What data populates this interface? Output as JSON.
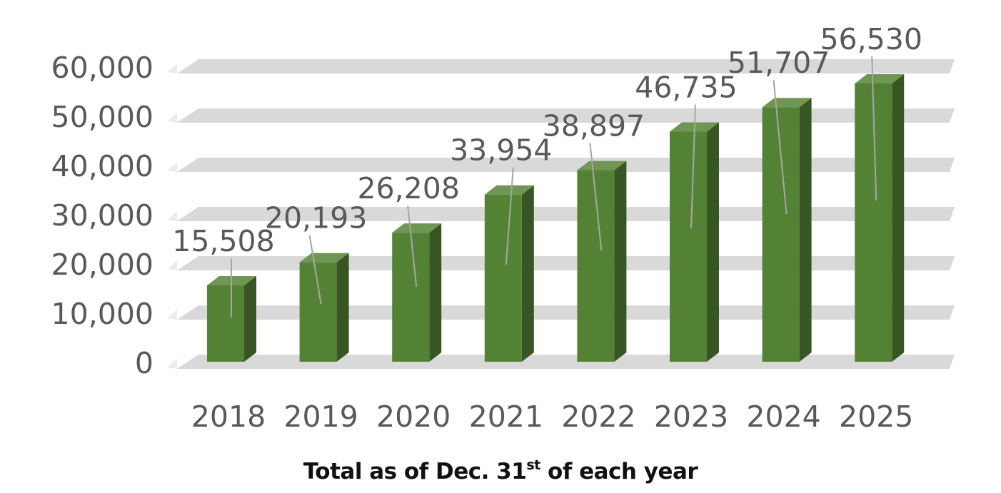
{
  "chart_data": {
    "type": "bar",
    "categories": [
      "2018",
      "2019",
      "2020",
      "2021",
      "2022",
      "2023",
      "2024",
      "2025"
    ],
    "values": [
      15508,
      20193,
      26208,
      33954,
      38897,
      46735,
      51707,
      56530
    ],
    "data_labels": [
      "15,508",
      "20,193",
      "26,208",
      "33,954",
      "38,897",
      "46,735",
      "51,707",
      "56,530"
    ],
    "y_ticks": [
      0,
      10000,
      20000,
      30000,
      40000,
      50000,
      60000
    ],
    "y_tick_labels": [
      "0",
      "10,000",
      "20,000",
      "30,000",
      "40,000",
      "50,000",
      "60,000"
    ],
    "ylim": [
      0,
      60000
    ],
    "style": "3d-column",
    "grid": true,
    "legend": "none",
    "caption": {
      "prefix": "Total as of Dec. 31",
      "superscript": "st",
      "suffix": " of each year"
    },
    "colors": {
      "bar_front": "#548235",
      "bar_top": "#6F9652",
      "bar_side": "#375623",
      "grid_band": "#D9D9D9",
      "axis_text": "#595959",
      "leader_line": "#A6A6A6",
      "caption_text": "#111111"
    }
  }
}
